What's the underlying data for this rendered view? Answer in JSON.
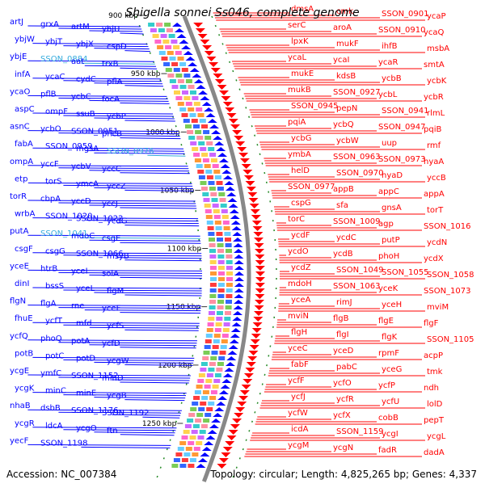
{
  "title": "Shigella sonnei Ss046, complete genome",
  "footer": {
    "accession": "Accession: NC_007384",
    "summary": "Topology: circular; Length: 4,825,265 bp; Genes: 4,337"
  },
  "colors": {
    "forward": "#ff0000",
    "reverse": "#0000ff",
    "highlight": "#33aadd",
    "spine": "#888888",
    "tick": "#228822"
  },
  "kbp_ticks": [
    "900 kbp",
    "950 kbp",
    "1000 kbp",
    "1050 kbp",
    "1100 kbp",
    "1150 kbp",
    "1200 kbp",
    "1250 kbp"
  ],
  "left_labels": [
    {
      "text": "artJ",
      "hl": false
    },
    {
      "text": "grxA",
      "hl": false
    },
    {
      "text": "artM",
      "hl": false
    },
    {
      "text": "ybjU",
      "hl": false
    },
    {
      "text": "ybjW",
      "hl": false
    },
    {
      "text": "ybjT",
      "hl": false
    },
    {
      "text": "ybjX",
      "hl": false
    },
    {
      "text": "cspD",
      "hl": false
    },
    {
      "text": "ybjE",
      "hl": false
    },
    {
      "text": "SSON_0884",
      "hl": true
    },
    {
      "text": "aat",
      "hl": false
    },
    {
      "text": "trxB",
      "hl": false
    },
    {
      "text": "infA",
      "hl": false
    },
    {
      "text": "ycaC",
      "hl": false
    },
    {
      "text": "cydC",
      "hl": false
    },
    {
      "text": "pflA",
      "hl": false
    },
    {
      "text": "ycaO",
      "hl": false
    },
    {
      "text": "pflB",
      "hl": false
    },
    {
      "text": "ycbC",
      "hl": false
    },
    {
      "text": "focA",
      "hl": false
    },
    {
      "text": "aspC",
      "hl": false
    },
    {
      "text": "ompF",
      "hl": false
    },
    {
      "text": "ssuB",
      "hl": false
    },
    {
      "text": "ycbP",
      "hl": false
    },
    {
      "text": "asnC",
      "hl": false
    },
    {
      "text": "ycbO",
      "hl": false
    },
    {
      "text": "SSON_0951",
      "hl": false
    },
    {
      "text": "pncB",
      "hl": false
    },
    {
      "text": "fabA",
      "hl": false
    },
    {
      "text": "SSON_0959",
      "hl": false
    },
    {
      "text": "mgsA",
      "hl": false
    },
    {
      "text": "SSON_0976",
      "hl": true
    },
    {
      "text": "ompA",
      "hl": false
    },
    {
      "text": "yccF",
      "hl": false
    },
    {
      "text": "ycbV",
      "hl": false
    },
    {
      "text": "yccC",
      "hl": false
    },
    {
      "text": "etp",
      "hl": false
    },
    {
      "text": "torS",
      "hl": false
    },
    {
      "text": "ymcA",
      "hl": false
    },
    {
      "text": "yccZ",
      "hl": false
    },
    {
      "text": "torR",
      "hl": false
    },
    {
      "text": "cbpA",
      "hl": false
    },
    {
      "text": "yccD",
      "hl": false
    },
    {
      "text": "yccJ",
      "hl": false
    },
    {
      "text": "wrbA",
      "hl": false
    },
    {
      "text": "SSON_1020",
      "hl": false
    },
    {
      "text": "SSON_1022",
      "hl": false
    },
    {
      "text": "ycdG",
      "hl": false
    },
    {
      "text": "putA",
      "hl": false
    },
    {
      "text": "SSON_1041",
      "hl": true
    },
    {
      "text": "mdoC",
      "hl": false
    },
    {
      "text": "csgE",
      "hl": false
    },
    {
      "text": "csgF",
      "hl": false
    },
    {
      "text": "csgG",
      "hl": false
    },
    {
      "text": "SSON_1066",
      "hl": false
    },
    {
      "text": "msyB",
      "hl": false
    },
    {
      "text": "yceE",
      "hl": false
    },
    {
      "text": "htrB",
      "hl": false
    },
    {
      "text": "yceI",
      "hl": false
    },
    {
      "text": "solA",
      "hl": false
    },
    {
      "text": "dinI",
      "hl": false
    },
    {
      "text": "bssS",
      "hl": false
    },
    {
      "text": "yceL",
      "hl": false
    },
    {
      "text": "flgM",
      "hl": false
    },
    {
      "text": "flgN",
      "hl": false
    },
    {
      "text": "flgA",
      "hl": false
    },
    {
      "text": "rne",
      "hl": false
    },
    {
      "text": "yceF",
      "hl": false
    },
    {
      "text": "fhuE",
      "hl": false
    },
    {
      "text": "ycfT",
      "hl": false
    },
    {
      "text": "mfd",
      "hl": false
    },
    {
      "text": "ycfS",
      "hl": false
    },
    {
      "text": "ycfQ",
      "hl": false
    },
    {
      "text": "phoQ",
      "hl": false
    },
    {
      "text": "potA",
      "hl": false
    },
    {
      "text": "ycfD",
      "hl": false
    },
    {
      "text": "potB",
      "hl": false
    },
    {
      "text": "potC",
      "hl": false
    },
    {
      "text": "potD",
      "hl": false
    },
    {
      "text": "ycgW",
      "hl": false
    },
    {
      "text": "ycgE",
      "hl": false
    },
    {
      "text": "ymfC",
      "hl": false
    },
    {
      "text": "SSON_1152",
      "hl": false
    },
    {
      "text": "minD",
      "hl": false
    },
    {
      "text": "ycgK",
      "hl": false
    },
    {
      "text": "minC",
      "hl": false
    },
    {
      "text": "minE",
      "hl": false
    },
    {
      "text": "ycgB",
      "hl": false
    },
    {
      "text": "nhaB",
      "hl": false
    },
    {
      "text": "dsbB",
      "hl": false
    },
    {
      "text": "SSON_1176",
      "hl": false
    },
    {
      "text": "SSON_1192",
      "hl": false
    },
    {
      "text": "ycgR",
      "hl": false
    },
    {
      "text": "ldcA",
      "hl": false
    },
    {
      "text": "ycgO",
      "hl": false
    },
    {
      "text": "ftn",
      "hl": false
    },
    {
      "text": "yecF",
      "hl": false
    },
    {
      "text": "SSON_1198",
      "hl": false
    }
  ],
  "right_labels": [
    "dmsA",
    "cmk",
    "SSON_0901",
    "ycaP",
    "serC",
    "aroA",
    "SSON_0910",
    "ycaQ",
    "lpxK",
    "mukF",
    "ihfB",
    "msbA",
    "ycaL",
    "ycaI",
    "ycaR",
    "smtA",
    "mukE",
    "kdsB",
    "ycbB",
    "ycbK",
    "mukB",
    "SSON_0927",
    "ycbL",
    "ycbR",
    "SSON_0945",
    "pepN",
    "SSON_0941",
    "rlmL",
    "pqiA",
    "ycbQ",
    "SSON_0947",
    "pqiB",
    "ycbG",
    "ycbW",
    "uup",
    "rmf",
    "ymbA",
    "SSON_0963",
    "SSON_0973",
    "hyaA",
    "helD",
    "SSON_0970",
    "hyaD",
    "yccB",
    "SSON_0977",
    "appB",
    "appC",
    "appA",
    "cspG",
    "sfa",
    "gnsA",
    "torT",
    "torC",
    "SSON_1009",
    "agp",
    "SSON_1016",
    "ycdF",
    "ycdC",
    "putP",
    "ycdN",
    "ycdO",
    "ycdB",
    "phoH",
    "ycdX",
    "ycdZ",
    "SSON_1049",
    "SSON_1055",
    "SSON_1058",
    "mdoH",
    "SSON_1063",
    "yceK",
    "SSON_1073",
    "yceA",
    "rimJ",
    "yceH",
    "mviM",
    "mviN",
    "flgB",
    "flgE",
    "flgF",
    "flgH",
    "flgI",
    "flgK",
    "SSON_1105",
    "yceC",
    "yceD",
    "rpmF",
    "acpP",
    "fabF",
    "pabC",
    "yceG",
    "tmk",
    "ycfF",
    "ycfO",
    "ycfP",
    "ndh",
    "ycfJ",
    "ycfR",
    "ycfU",
    "lolD",
    "ycfW",
    "ycfX",
    "cobB",
    "pepT",
    "icdA",
    "SSON_1159",
    "ycgI",
    "ycgL",
    "ycgM",
    "ycgN",
    "fadR",
    "dadA"
  ]
}
